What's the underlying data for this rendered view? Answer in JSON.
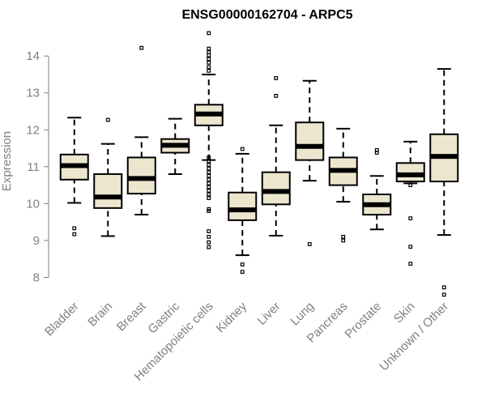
{
  "chart_data": {
    "type": "box",
    "title": "ENSG00000162704 - ARPC5",
    "xlabel": "",
    "ylabel": "Expression",
    "ylim": [
      7.55,
      14.75
    ],
    "yticks": [
      8,
      9,
      10,
      11,
      12,
      13,
      14
    ],
    "grid": false,
    "colors": {
      "box_fill": "#ede6cf",
      "stroke": "#000000",
      "axis": "#808080"
    },
    "categories": [
      "Bladder",
      "Brain",
      "Breast",
      "Gastric",
      "Hematopoietic cells",
      "Kidney",
      "Liver",
      "Lung",
      "Pancreas",
      "Prostate",
      "Skin",
      "Unknown / Other"
    ],
    "boxes": [
      {
        "min": 10.02,
        "q1": 10.65,
        "median": 11.03,
        "q3": 11.33,
        "max": 12.33,
        "outliers": [
          9.33,
          9.17
        ]
      },
      {
        "min": 9.12,
        "q1": 9.88,
        "median": 10.18,
        "q3": 10.8,
        "max": 11.62,
        "outliers": [
          12.27
        ]
      },
      {
        "min": 9.7,
        "q1": 10.27,
        "median": 10.68,
        "q3": 11.25,
        "max": 11.8,
        "outliers": [
          14.22
        ]
      },
      {
        "min": 10.8,
        "q1": 11.38,
        "median": 11.58,
        "q3": 11.75,
        "max": 12.3,
        "outliers": []
      },
      {
        "min": 11.18,
        "q1": 12.12,
        "median": 12.43,
        "q3": 12.68,
        "max": 13.5,
        "outliers": [
          14.62,
          14.2,
          14.1,
          14.02,
          13.92,
          13.82,
          13.7,
          13.6,
          11.25,
          11.15,
          11.05,
          10.95,
          10.85,
          10.75,
          10.65,
          10.55,
          10.45,
          10.35,
          10.25,
          10.15,
          9.85,
          9.8,
          9.25,
          9.1,
          8.95,
          8.82
        ]
      },
      {
        "min": 8.6,
        "q1": 9.55,
        "median": 9.83,
        "q3": 10.3,
        "max": 11.35,
        "outliers": [
          11.48,
          8.35,
          8.15
        ]
      },
      {
        "min": 9.13,
        "q1": 9.98,
        "median": 10.33,
        "q3": 10.85,
        "max": 12.12,
        "outliers": [
          13.4,
          12.92
        ]
      },
      {
        "min": 10.62,
        "q1": 11.18,
        "median": 11.55,
        "q3": 12.2,
        "max": 13.33,
        "outliers": [
          8.9
        ]
      },
      {
        "min": 10.05,
        "q1": 10.5,
        "median": 10.9,
        "q3": 11.25,
        "max": 12.03,
        "outliers": [
          9.1,
          9.0
        ]
      },
      {
        "min": 9.3,
        "q1": 9.7,
        "median": 9.97,
        "q3": 10.25,
        "max": 10.75,
        "outliers": [
          11.45,
          11.38
        ]
      },
      {
        "min": 10.55,
        "q1": 10.6,
        "median": 10.78,
        "q3": 11.1,
        "max": 11.68,
        "outliers": [
          10.5,
          9.6,
          8.83,
          8.37
        ]
      },
      {
        "min": 9.15,
        "q1": 10.6,
        "median": 11.28,
        "q3": 11.88,
        "max": 13.65,
        "outliers": [
          7.73,
          7.53
        ]
      }
    ]
  }
}
